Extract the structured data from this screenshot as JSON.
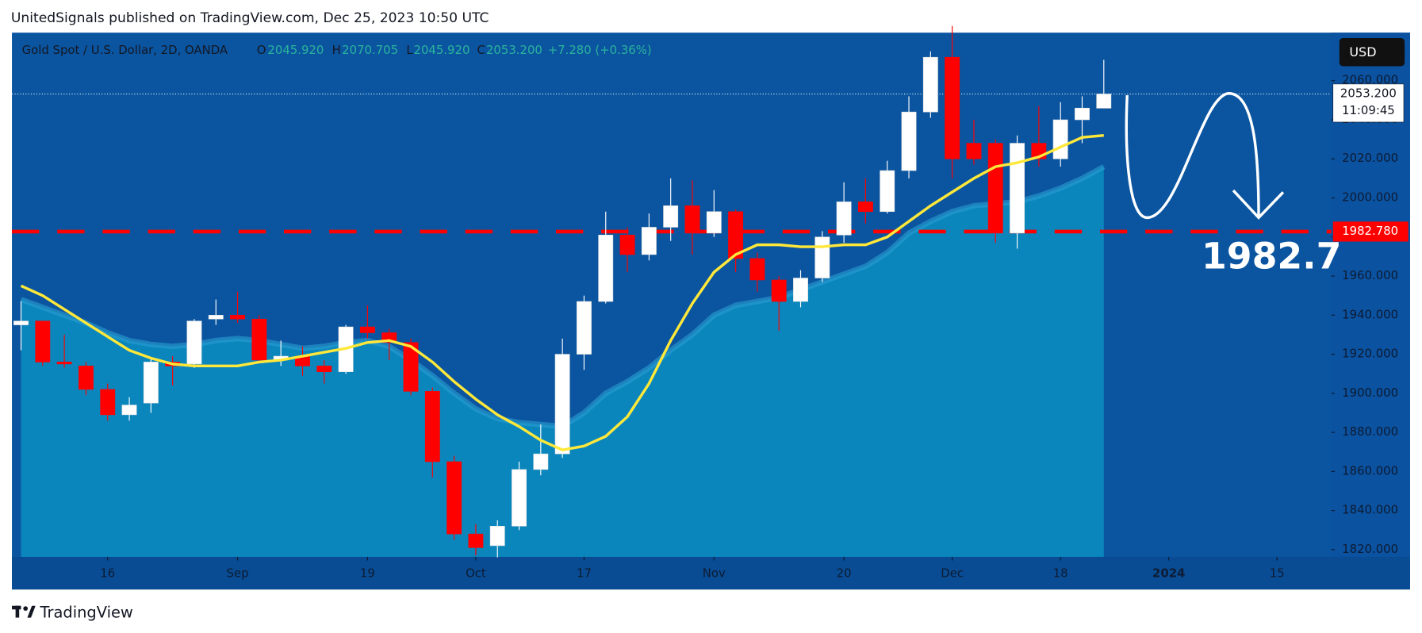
{
  "header": {
    "text": "UnitedSignals published on TradingView.com, Dec 25, 2023 10:50 UTC"
  },
  "footer": {
    "brand": "TradingView"
  },
  "currency_button": "USD",
  "chart_data": {
    "type": "candlestick",
    "title": "Gold Spot / U.S. Dollar, 2D, OANDA",
    "legend_values": {
      "o_label": "O",
      "o": "2045.920",
      "h_label": "H",
      "h": "2070.705",
      "l_label": "L",
      "l": "2045.920",
      "c_label": "C",
      "c": "2053.200",
      "change": "+7.280 (+0.36%)"
    },
    "up_color": "#ffffff",
    "down_color": "#ff0000",
    "open": [
      1935,
      1937,
      1916,
      1914,
      1902,
      1889,
      1895,
      1916,
      1915,
      1938,
      1940,
      1938,
      1917,
      1919,
      1914,
      1911,
      1934,
      1931,
      1926,
      1901,
      1865,
      1828,
      1822,
      1832,
      1861,
      1869,
      1920,
      1947,
      1981,
      1971,
      1985,
      1996,
      1982,
      1993,
      1969,
      1958,
      1947,
      1959,
      1981,
      1998,
      1993,
      2014,
      2044,
      2072,
      2028,
      2028,
      1982,
      2028,
      2020,
      2040,
      2045.92
    ],
    "high": [
      1947,
      1937,
      1930,
      1916,
      1905,
      1898,
      1918,
      1919,
      1938,
      1948,
      1952,
      1940,
      1927,
      1924,
      1917,
      1935,
      1945,
      1933,
      1928,
      1903,
      1868,
      1833,
      1835,
      1865,
      1884,
      1928,
      1950,
      1993,
      1985,
      1992,
      2010,
      2009,
      2004,
      1994,
      1972,
      1960,
      1963,
      1983,
      2008,
      2010,
      2019,
      2052,
      2075,
      2088,
      2040,
      2030,
      2032,
      2047,
      2049,
      2052,
      2070.705
    ],
    "low": [
      1922,
      1914,
      1913,
      1899,
      1886,
      1886,
      1890,
      1904,
      1913,
      1935,
      1936,
      1916,
      1914,
      1909,
      1905,
      1910,
      1928,
      1917,
      1899,
      1857,
      1825,
      1817,
      1816,
      1830,
      1858,
      1867,
      1912,
      1946,
      1962,
      1968,
      1978,
      1971,
      1980,
      1962,
      1952,
      1932,
      1944,
      1957,
      1977,
      1987,
      1992,
      2010,
      2041,
      2010,
      2017,
      1977,
      1974,
      2016,
      2016,
      2028,
      2045.92
    ],
    "close": [
      1937,
      1916,
      1915,
      1902,
      1889,
      1894,
      1916,
      1914,
      1937,
      1940,
      1938,
      1917,
      1919,
      1914,
      1911,
      1934,
      1931,
      1926,
      1901,
      1865,
      1828,
      1821,
      1832,
      1861,
      1869,
      1920,
      1947,
      1981,
      1971,
      1985,
      1996,
      1982,
      1993,
      1969,
      1958,
      1947,
      1959,
      1980,
      1998,
      1993,
      2014,
      2044,
      2072,
      2020,
      2020,
      1982,
      2028,
      2020,
      2040,
      2046,
      2053.2
    ],
    "series": [
      {
        "color": "#ffe83a",
        "values": [
          1955,
          1950,
          1943,
          1936,
          1929,
          1922,
          1918,
          1915,
          1914,
          1914,
          1914,
          1916,
          1917,
          1919,
          1921,
          1923,
          1926,
          1927,
          1924,
          1916,
          1906,
          1897,
          1889,
          1883,
          1876,
          1871,
          1873,
          1878,
          1888,
          1905,
          1927,
          1946,
          1962,
          1971,
          1976,
          1976,
          1975,
          1975,
          1976,
          1976,
          1980,
          1988,
          1996,
          2003,
          2010,
          2016,
          2018,
          2021,
          2026,
          2031,
          2032
        ]
      },
      {
        "color": "#0a86bd",
        "values": [
          1948,
          1944,
          1940,
          1936,
          1931,
          1927,
          1925,
          1924,
          1925,
          1927,
          1928,
          1927,
          1925,
          1923,
          1924,
          1926,
          1927,
          1924,
          1917,
          1909,
          1900,
          1892,
          1887,
          1885,
          1884,
          1883,
          1890,
          1900,
          1906,
          1913,
          1922,
          1930,
          1940,
          1945,
          1947,
          1949,
          1953,
          1957,
          1961,
          1965,
          1972,
          1982,
          1988,
          1993,
          1996,
          1997,
          1998,
          2001,
          2005,
          2010,
          2016
        ]
      }
    ],
    "xlim": [
      -0.42,
      60.5
    ],
    "xticks": [
      {
        "value": 4,
        "label": "16"
      },
      {
        "value": 10,
        "label": "Sep"
      },
      {
        "value": 16,
        "label": "19"
      },
      {
        "value": 21,
        "label": "Oct"
      },
      {
        "value": 26,
        "label": "17"
      },
      {
        "value": 32,
        "label": "Nov"
      },
      {
        "value": 38,
        "label": "20"
      },
      {
        "value": 43,
        "label": "Dec"
      },
      {
        "value": 48,
        "label": "18"
      },
      {
        "value": 53,
        "label": "2024"
      },
      {
        "value": 58,
        "label": "15"
      }
    ],
    "ylim": [
      1816.3,
      2084.6
    ],
    "yticks": [
      {
        "value": 1820,
        "label": "1820.000"
      },
      {
        "value": 1840,
        "label": "1840.000"
      },
      {
        "value": 1860,
        "label": "1860.000"
      },
      {
        "value": 1880,
        "label": "1880.000"
      },
      {
        "value": 1900,
        "label": "1900.000"
      },
      {
        "value": 1920,
        "label": "1920.000"
      },
      {
        "value": 1940,
        "label": "1940.000"
      },
      {
        "value": 1960,
        "label": "1960.000"
      },
      {
        "value": 1980,
        "label": "1980.000"
      },
      {
        "value": 2000,
        "label": "2000.000"
      },
      {
        "value": 2020,
        "label": "2020.000"
      },
      {
        "value": 2040,
        "label": "2040.000"
      },
      {
        "value": 2060,
        "label": "2060.000"
      }
    ],
    "level_line": {
      "value": 1982.78,
      "label": "1982.780",
      "color": "#ff0000"
    },
    "current_price": {
      "value": 2053.2,
      "label": "2053.200",
      "countdown": "11:09:45"
    },
    "annotation": "1982.7"
  }
}
